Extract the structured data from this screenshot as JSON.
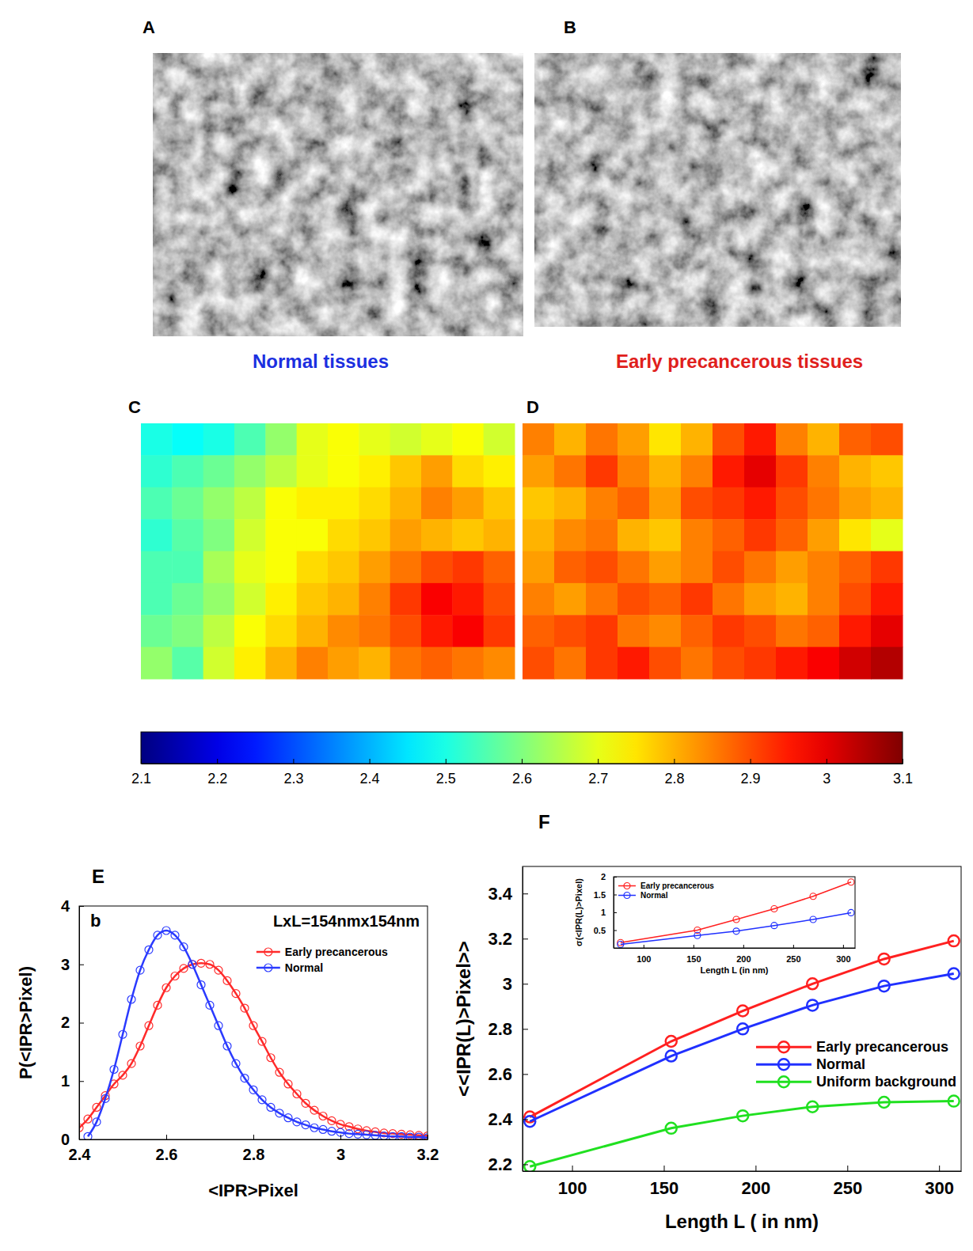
{
  "chart_data": [
    {
      "type": "heatmap",
      "color_range": [
        2.1,
        3.1
      ],
      "color_ticks": [
        2.1,
        2.2,
        2.3,
        2.4,
        2.5,
        2.6,
        2.7,
        2.8,
        2.9,
        3,
        3.1
      ],
      "panels": [
        {
          "image_label": "A",
          "panel_label": "C",
          "title": "Normal tissues",
          "color": "#1c2fe0",
          "cells": [
            [
              2.5,
              2.48,
              2.5,
              2.55,
              2.62,
              2.7,
              2.72,
              2.7,
              2.68,
              2.7,
              2.72,
              2.68
            ],
            [
              2.52,
              2.55,
              2.58,
              2.62,
              2.66,
              2.7,
              2.72,
              2.74,
              2.78,
              2.82,
              2.76,
              2.74
            ],
            [
              2.55,
              2.58,
              2.62,
              2.66,
              2.72,
              2.74,
              2.74,
              2.76,
              2.8,
              2.85,
              2.82,
              2.78
            ],
            [
              2.52,
              2.56,
              2.6,
              2.68,
              2.72,
              2.72,
              2.76,
              2.78,
              2.82,
              2.8,
              2.78,
              2.8
            ],
            [
              2.55,
              2.55,
              2.64,
              2.7,
              2.72,
              2.76,
              2.78,
              2.82,
              2.86,
              2.9,
              2.92,
              2.88
            ],
            [
              2.55,
              2.58,
              2.62,
              2.68,
              2.74,
              2.78,
              2.8,
              2.85,
              2.92,
              2.98,
              2.95,
              2.9
            ],
            [
              2.58,
              2.6,
              2.66,
              2.72,
              2.76,
              2.8,
              2.84,
              2.86,
              2.9,
              2.95,
              2.98,
              2.92
            ],
            [
              2.62,
              2.56,
              2.68,
              2.74,
              2.8,
              2.85,
              2.82,
              2.8,
              2.86,
              2.88,
              2.86,
              2.84
            ]
          ]
        },
        {
          "image_label": "B",
          "panel_label": "D",
          "title": "Early precancerous tissues",
          "color": "#e0201c",
          "cells": [
            [
              2.85,
              2.8,
              2.86,
              2.82,
              2.75,
              2.8,
              2.9,
              2.95,
              2.85,
              2.8,
              2.88,
              2.9
            ],
            [
              2.82,
              2.86,
              2.92,
              2.85,
              2.8,
              2.85,
              2.95,
              3.0,
              2.92,
              2.85,
              2.8,
              2.78
            ],
            [
              2.78,
              2.8,
              2.85,
              2.88,
              2.82,
              2.9,
              2.92,
              2.95,
              2.9,
              2.86,
              2.82,
              2.8
            ],
            [
              2.8,
              2.84,
              2.86,
              2.8,
              2.78,
              2.85,
              2.88,
              2.92,
              2.88,
              2.82,
              2.75,
              2.7
            ],
            [
              2.82,
              2.88,
              2.9,
              2.86,
              2.82,
              2.85,
              2.9,
              2.86,
              2.82,
              2.85,
              2.88,
              2.92
            ],
            [
              2.85,
              2.82,
              2.86,
              2.9,
              2.88,
              2.92,
              2.86,
              2.82,
              2.8,
              2.85,
              2.9,
              2.95
            ],
            [
              2.88,
              2.9,
              2.92,
              2.86,
              2.84,
              2.88,
              2.92,
              2.9,
              2.86,
              2.88,
              2.95,
              3.0
            ],
            [
              2.9,
              2.86,
              2.92,
              2.95,
              2.9,
              2.86,
              2.9,
              2.92,
              2.95,
              2.98,
              3.02,
              3.05
            ]
          ]
        }
      ]
    },
    {
      "type": "line",
      "panel_label": "E",
      "annotations": [
        "b",
        "LxL=154nmx154nm"
      ],
      "x_label": "<IPR>Pixel",
      "y_label": "P(<IPR>Pixel)",
      "xlim": [
        2.4,
        3.2
      ],
      "ylim": [
        0,
        4
      ],
      "xticks": [
        2.4,
        2.6,
        2.8,
        3,
        3.2
      ],
      "yticks": [
        0,
        1,
        2,
        3,
        4
      ],
      "legend": "upper right",
      "marker": "circle",
      "x": [
        2.4,
        2.42,
        2.44,
        2.46,
        2.48,
        2.5,
        2.52,
        2.54,
        2.56,
        2.58,
        2.6,
        2.62,
        2.64,
        2.66,
        2.68,
        2.7,
        2.72,
        2.74,
        2.76,
        2.78,
        2.8,
        2.82,
        2.84,
        2.86,
        2.88,
        2.9,
        2.92,
        2.94,
        2.96,
        2.98,
        3.0,
        3.02,
        3.04,
        3.06,
        3.08,
        3.1,
        3.12,
        3.14,
        3.16,
        3.18,
        3.2
      ],
      "series": [
        {
          "name": "Early precancerous",
          "color": "#ff2a2a",
          "values": [
            0.2,
            0.35,
            0.55,
            0.75,
            0.95,
            1.1,
            1.3,
            1.6,
            1.95,
            2.3,
            2.6,
            2.8,
            2.93,
            3.0,
            3.02,
            3.0,
            2.9,
            2.72,
            2.5,
            2.25,
            1.95,
            1.68,
            1.4,
            1.15,
            0.95,
            0.78,
            0.62,
            0.5,
            0.4,
            0.32,
            0.26,
            0.22,
            0.18,
            0.15,
            0.13,
            0.11,
            0.1,
            0.09,
            0.08,
            0.07,
            0.06
          ]
        },
        {
          "name": "Normal",
          "color": "#2a3aff",
          "values": [
            null,
            0.05,
            0.3,
            0.7,
            1.2,
            1.8,
            2.4,
            2.9,
            3.25,
            3.5,
            3.58,
            3.5,
            3.3,
            3.0,
            2.65,
            2.3,
            1.95,
            1.6,
            1.3,
            1.05,
            0.85,
            0.68,
            0.55,
            0.45,
            0.37,
            0.3,
            0.25,
            0.2,
            0.17,
            0.14,
            0.12,
            0.1,
            0.09,
            0.08,
            0.07,
            0.06,
            0.05,
            0.05,
            0.04,
            0.04,
            0.03
          ]
        }
      ]
    },
    {
      "type": "line",
      "panel_label": "F",
      "x_label": "Length L ( in nm)",
      "y_label": "<<IPR(L)>Pixel>>",
      "xlim": [
        73,
        312
      ],
      "ylim": [
        2.17,
        3.52
      ],
      "xticks": [
        100,
        150,
        200,
        250,
        300
      ],
      "yticks": [
        2.2,
        2.4,
        2.6,
        2.8,
        3,
        3.2,
        3.4
      ],
      "legend": "right",
      "marker": "circle",
      "x": [
        77,
        154,
        193,
        231,
        270,
        308
      ],
      "series": [
        {
          "name": "Early precancerous",
          "color": "#ff2020",
          "values": [
            2.41,
            2.745,
            2.88,
            3.0,
            3.11,
            3.19
          ]
        },
        {
          "name": "Normal",
          "color": "#2030ff",
          "values": [
            2.39,
            2.68,
            2.8,
            2.905,
            2.99,
            3.045
          ]
        },
        {
          "name": "Uniform background",
          "color": "#20e020",
          "values": [
            2.19,
            2.36,
            2.415,
            2.455,
            2.475,
            2.48
          ]
        }
      ]
    },
    {
      "type": "line",
      "x_label": "Length L (in nm)",
      "y_label": "σ(<IPR(L)>Pixel)",
      "xlim": [
        70,
        312
      ],
      "ylim": [
        0,
        2
      ],
      "xticks": [
        100,
        150,
        200,
        250,
        300
      ],
      "yticks": [
        0.5,
        1,
        1.5,
        2
      ],
      "legend": "upper left",
      "marker": "circle",
      "x": [
        77,
        154,
        193,
        231,
        270,
        308
      ],
      "series": [
        {
          "name": "Early precancerous",
          "color": "#ff2020",
          "values": [
            0.15,
            0.5,
            0.8,
            1.1,
            1.45,
            1.85
          ]
        },
        {
          "name": "Normal",
          "color": "#2030ff",
          "values": [
            0.1,
            0.35,
            0.47,
            0.63,
            0.8,
            0.99
          ]
        }
      ]
    }
  ]
}
